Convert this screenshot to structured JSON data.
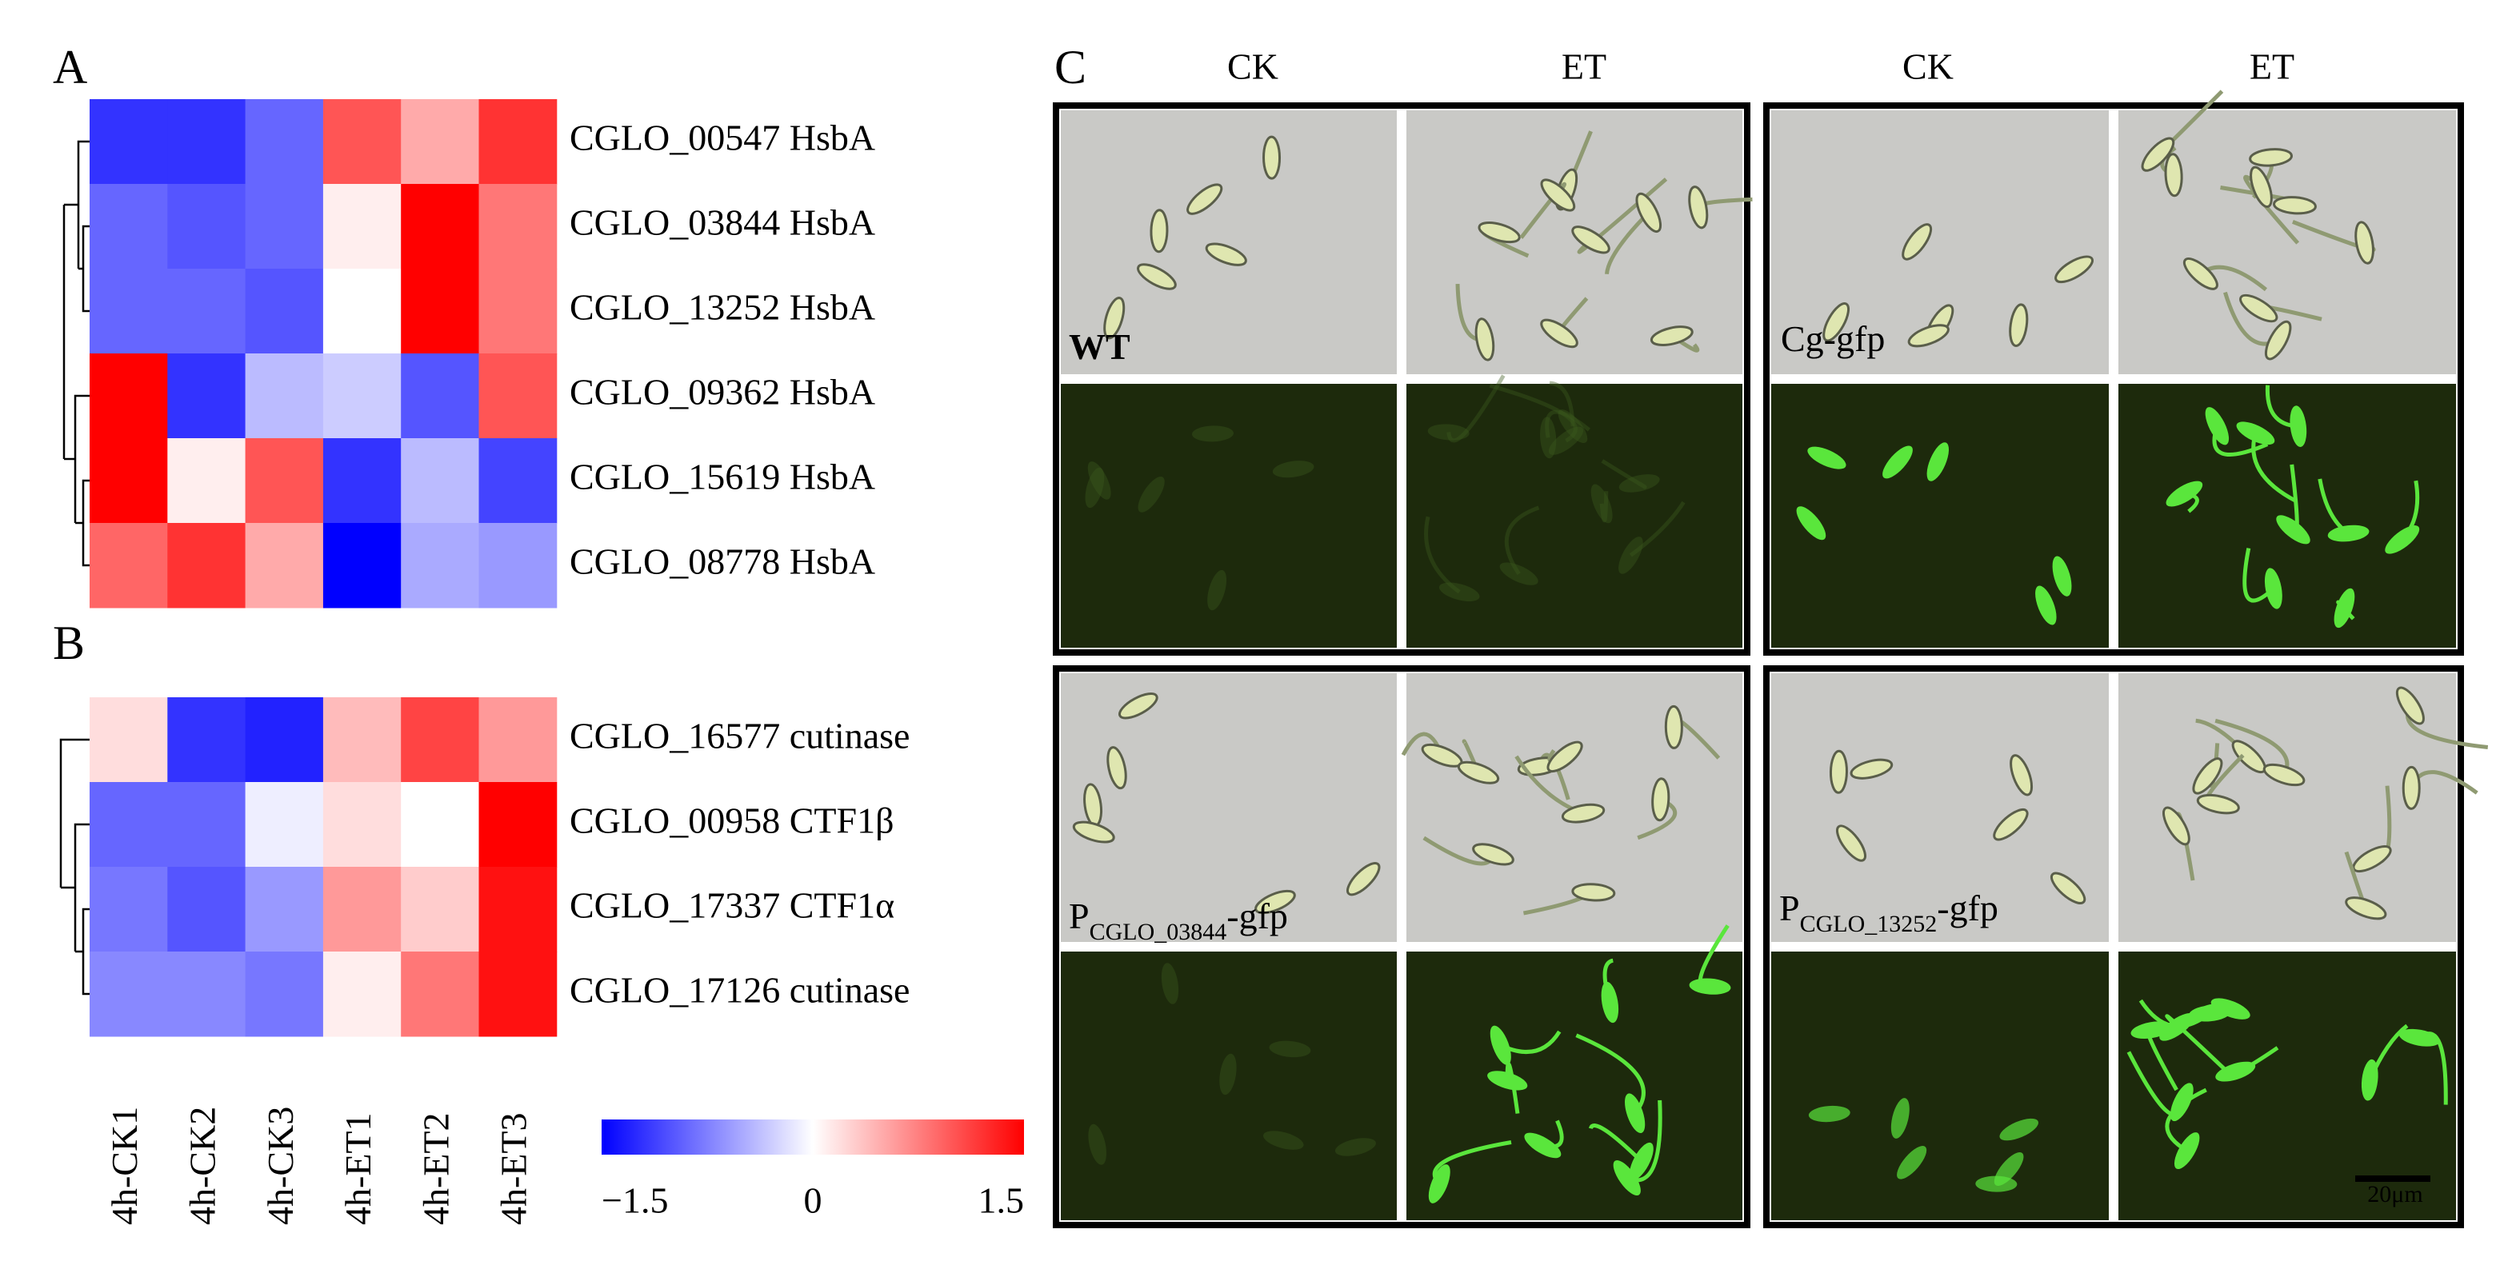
{
  "figure": {
    "panel_labels": [
      "A",
      "B",
      "C"
    ],
    "column_headers": [
      "CK",
      "ET",
      "CK",
      "ET"
    ],
    "strains": [
      {
        "main": "WT"
      },
      {
        "main": "Cg-gfp"
      },
      {
        "main": "P",
        "sub": "CGLO_03844",
        "suffix": "-gfp"
      },
      {
        "main": "P",
        "sub": "CGLO_13252",
        "suffix": "-gfp"
      }
    ],
    "scale_bar": "20μm"
  },
  "chart_data": [
    {
      "type": "heatmap",
      "rows": [
        "CGLO_00547 HsbA",
        "CGLO_03844 HsbA",
        "CGLO_13252 HsbA",
        "CGLO_09362 HsbA",
        "CGLO_15619 HsbA",
        "CGLO_08778 HsbA"
      ],
      "values": [
        [
          -1.2,
          -1.2,
          -0.9,
          1.0,
          0.5,
          1.2
        ],
        [
          -0.9,
          -1.0,
          -0.9,
          0.1,
          1.5,
          0.8
        ],
        [
          -0.9,
          -0.9,
          -1.0,
          0.0,
          1.5,
          0.8
        ],
        [
          1.5,
          -1.2,
          -0.4,
          -0.3,
          -1.0,
          1.0
        ],
        [
          1.5,
          0.1,
          1.0,
          -1.2,
          -0.4,
          -1.1
        ],
        [
          0.9,
          1.2,
          0.5,
          -1.5,
          -0.5,
          -0.6
        ]
      ],
      "zlim": [
        -1.5,
        1.5
      ],
      "colorscale": [
        "#0000ff",
        "#ffffff",
        "#ff0000"
      ]
    },
    {
      "type": "heatmap",
      "categories": [
        "4h-CK1",
        "4h-CK2",
        "4h-CK3",
        "4h-ET1",
        "4h-ET2",
        "4h-ET3"
      ],
      "rows": [
        "CGLO_16577 cutinase",
        "CGLO_00958 CTF1β",
        "CGLO_17337 CTF1α",
        "CGLO_17126 cutinase"
      ],
      "values": [
        [
          0.2,
          -1.2,
          -1.3,
          0.4,
          1.1,
          0.6
        ],
        [
          -0.9,
          -0.9,
          -0.1,
          0.2,
          0.0,
          1.5
        ],
        [
          -0.8,
          -1.0,
          -0.6,
          0.6,
          0.3,
          1.4
        ],
        [
          -0.7,
          -0.7,
          -0.8,
          0.1,
          0.8,
          1.4
        ]
      ],
      "zlim": [
        -1.5,
        1.5
      ],
      "colorscale": [
        "#0000ff",
        "#ffffff",
        "#ff0000"
      ],
      "cticks": [
        {
          "value": -1.5,
          "label": "−1.5"
        },
        0,
        1.5
      ]
    }
  ]
}
